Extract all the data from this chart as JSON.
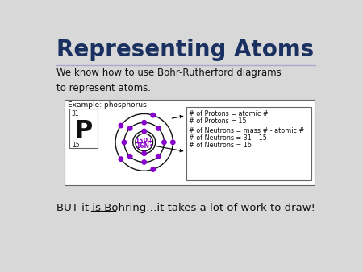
{
  "title": "Representing Atoms",
  "title_color": "#1a3060",
  "title_fontsize": 20,
  "body_text1": "We know how to use Bohr-Rutherford diagrams\nto represent atoms.",
  "body_text2": "BUT it is Bohring…it takes a lot of work to draw!",
  "example_label": "Example: phosphorus",
  "element_symbol": "P",
  "element_mass": "31",
  "element_atomic": "15",
  "info_lines": [
    "# of Protons = atomic #",
    "# of Protons = 15",
    "",
    "# of Neutrons = mass # - atomic #",
    "# of Neutrons = 31 – 15",
    "# of Neutrons = 16"
  ],
  "slide_bg": "#d8d8d8",
  "electron_color": "#8800cc",
  "orbit_color": "#111111",
  "nucleus_text_color": "#8800cc",
  "text_color": "#111111",
  "title_underline_color": "#aaaacc",
  "box_bg": "#ffffff",
  "box_edge": "#666666"
}
